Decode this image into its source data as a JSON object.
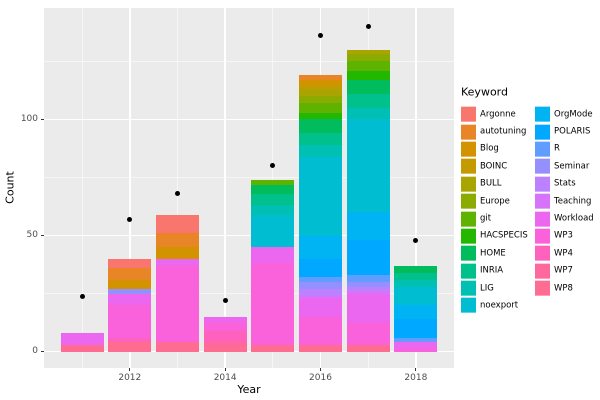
{
  "figure": {
    "background": "#FFFFFF",
    "panel_background": "#EBEBEB",
    "grid_color": "#FFFFFF",
    "tick_label_color": "#4D4D4D",
    "point_color": "#000000"
  },
  "chart_data": {
    "type": "bar",
    "stacked": true,
    "title": "",
    "xlabel": "Year",
    "ylabel": "Count",
    "legend_title": "Keyword",
    "legend_position": "right",
    "grid": true,
    "categories": [
      2011,
      2012,
      2013,
      2014,
      2015,
      2016,
      2017,
      2018
    ],
    "x_breaks": [
      2012,
      2014,
      2016,
      2018
    ],
    "x_minor_breaks": [
      2011,
      2013,
      2015,
      2017
    ],
    "y_breaks": [
      0,
      50,
      100
    ],
    "y_minor_breaks": [
      25,
      75,
      125
    ],
    "xlim": [
      2010.2,
      2018.8
    ],
    "ylim": [
      -7,
      148
    ],
    "bar_width": 0.9,
    "series": [
      {
        "name": "Argonne",
        "color": "#F8766D",
        "values": [
          0,
          4,
          8,
          0,
          0,
          0,
          0,
          0
        ]
      },
      {
        "name": "autotuning",
        "color": "#E88526",
        "values": [
          0,
          5,
          6,
          0,
          0,
          2,
          0,
          0
        ]
      },
      {
        "name": "Blog",
        "color": "#D39200",
        "values": [
          0,
          4,
          5,
          0,
          0,
          2,
          0,
          0
        ]
      },
      {
        "name": "BOINC",
        "color": "#C49A00",
        "values": [
          0,
          0,
          0,
          0,
          0,
          2,
          0,
          0
        ]
      },
      {
        "name": "BULL",
        "color": "#A9A400",
        "values": [
          0,
          0,
          0,
          0,
          0,
          3,
          2,
          0
        ]
      },
      {
        "name": "Europe",
        "color": "#8CAB00",
        "values": [
          0,
          0,
          0,
          0,
          0,
          3,
          3,
          0
        ]
      },
      {
        "name": "git",
        "color": "#5EB300",
        "values": [
          0,
          0,
          0,
          0,
          2,
          4,
          4,
          0
        ]
      },
      {
        "name": "HACSPECIS",
        "color": "#24B700",
        "values": [
          0,
          0,
          0,
          0,
          0,
          3,
          4,
          0
        ]
      },
      {
        "name": "HOME",
        "color": "#00BC5C",
        "values": [
          0,
          0,
          0,
          0,
          4,
          6,
          6,
          3
        ]
      },
      {
        "name": "INRIA",
        "color": "#00C08B",
        "values": [
          0,
          0,
          0,
          0,
          5,
          5,
          6,
          3
        ]
      },
      {
        "name": "LIG",
        "color": "#00C0B4",
        "values": [
          0,
          0,
          0,
          0,
          4,
          5,
          5,
          3
        ]
      },
      {
        "name": "noexport",
        "color": "#00BDD2",
        "values": [
          0,
          0,
          0,
          0,
          14,
          34,
          40,
          8
        ]
      },
      {
        "name": "OrgMode",
        "color": "#00B3F2",
        "values": [
          0,
          0,
          0,
          0,
          0,
          10,
          12,
          6
        ]
      },
      {
        "name": "POLARIS",
        "color": "#00A9FF",
        "values": [
          0,
          0,
          0,
          0,
          0,
          8,
          15,
          8
        ]
      },
      {
        "name": "R",
        "color": "#619CFF",
        "values": [
          0,
          0,
          0,
          0,
          0,
          2,
          3,
          2
        ]
      },
      {
        "name": "Seminar",
        "color": "#9590FF",
        "values": [
          0,
          2,
          0,
          0,
          0,
          3,
          2,
          0
        ]
      },
      {
        "name": "Stats",
        "color": "#BC81FF",
        "values": [
          0,
          0,
          0,
          0,
          0,
          3,
          2,
          0
        ]
      },
      {
        "name": "Teaching",
        "color": "#D773FA",
        "values": [
          0,
          0,
          0,
          0,
          0,
          1,
          1,
          0
        ]
      },
      {
        "name": "Workload",
        "color": "#EC67F0",
        "values": [
          5,
          5,
          3,
          2,
          7,
          8,
          12,
          3
        ]
      },
      {
        "name": "WP3",
        "color": "#FA62DB",
        "values": [
          0,
          14,
          33,
          4,
          35,
          12,
          10,
          1
        ]
      },
      {
        "name": "WP4",
        "color": "#FF62BC",
        "values": [
          0,
          2,
          0,
          5,
          0,
          0,
          0,
          0
        ]
      },
      {
        "name": "WP7",
        "color": "#FF689D",
        "values": [
          0,
          0,
          0,
          2,
          0,
          0,
          0,
          0
        ]
      },
      {
        "name": "WP8",
        "color": "#FF6C91",
        "values": [
          3,
          4,
          4,
          2,
          3,
          3,
          3,
          0
        ]
      }
    ],
    "points": {
      "name": "yearly-count-dots",
      "values": [
        24,
        57,
        68,
        22,
        80,
        136,
        140,
        48
      ]
    },
    "bar_totals": [
      8,
      40,
      59,
      15,
      74,
      119,
      130,
      37
    ]
  }
}
